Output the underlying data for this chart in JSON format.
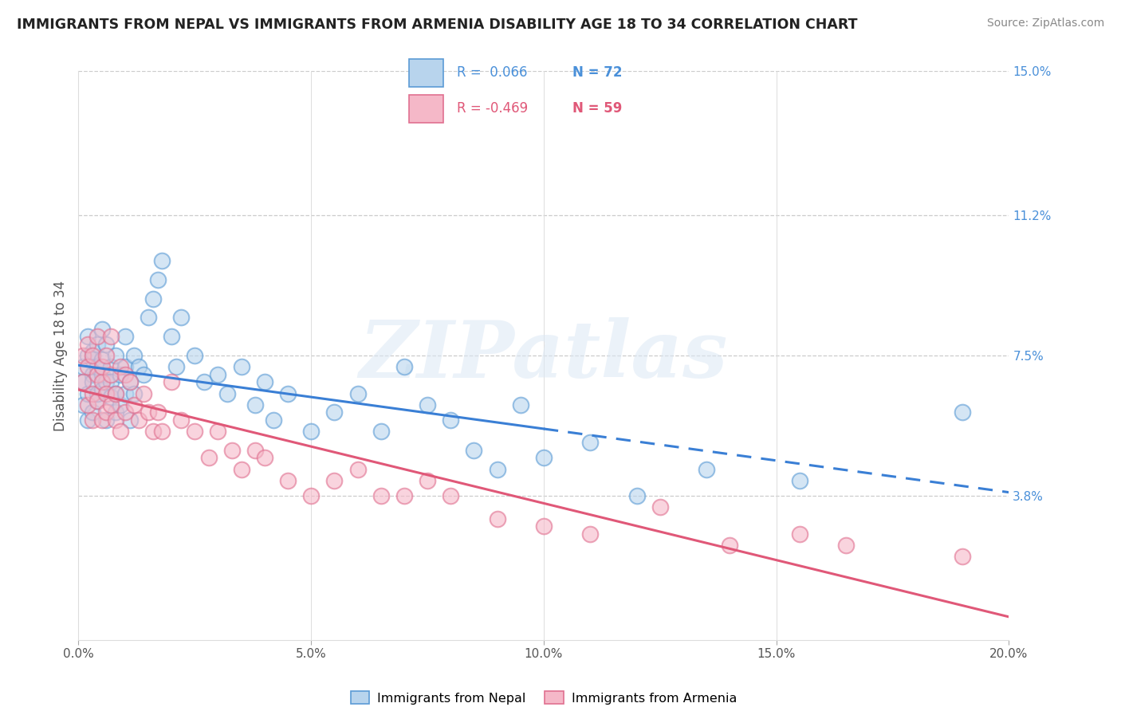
{
  "title": "IMMIGRANTS FROM NEPAL VS IMMIGRANTS FROM ARMENIA DISABILITY AGE 18 TO 34 CORRELATION CHART",
  "source": "Source: ZipAtlas.com",
  "ylabel": "Disability Age 18 to 34",
  "xlim": [
    0.0,
    0.2
  ],
  "ylim": [
    0.0,
    0.15
  ],
  "yticks": [
    0.038,
    0.075,
    0.112,
    0.15
  ],
  "ytick_labels": [
    "3.8%",
    "7.5%",
    "11.2%",
    "15.0%"
  ],
  "xticks": [
    0.0,
    0.05,
    0.1,
    0.15,
    0.2
  ],
  "xtick_labels": [
    "0.0%",
    "5.0%",
    "10.0%",
    "15.0%",
    "20.0%"
  ],
  "nepal_color": "#b8d4ed",
  "nepal_edge_color": "#5b9bd5",
  "armenia_color": "#f5b8c8",
  "armenia_edge_color": "#e07090",
  "nepal_line_color": "#3a7fd5",
  "armenia_line_color": "#e05878",
  "watermark_text": "ZIPatlas",
  "background_color": "#ffffff",
  "legend_R_nepal": "R =  0.066",
  "legend_N_nepal": "N = 72",
  "legend_R_armenia": "R = -0.469",
  "legend_N_armenia": "N = 59",
  "nepal_x": [
    0.001,
    0.001,
    0.001,
    0.002,
    0.002,
    0.002,
    0.002,
    0.003,
    0.003,
    0.003,
    0.003,
    0.003,
    0.004,
    0.004,
    0.004,
    0.004,
    0.005,
    0.005,
    0.005,
    0.005,
    0.006,
    0.006,
    0.006,
    0.007,
    0.007,
    0.007,
    0.008,
    0.008,
    0.008,
    0.009,
    0.009,
    0.01,
    0.01,
    0.01,
    0.011,
    0.011,
    0.012,
    0.012,
    0.013,
    0.014,
    0.015,
    0.016,
    0.017,
    0.018,
    0.02,
    0.021,
    0.022,
    0.025,
    0.027,
    0.03,
    0.032,
    0.035,
    0.038,
    0.04,
    0.042,
    0.045,
    0.05,
    0.055,
    0.06,
    0.065,
    0.07,
    0.075,
    0.08,
    0.085,
    0.09,
    0.095,
    0.1,
    0.11,
    0.12,
    0.135,
    0.155,
    0.19
  ],
  "nepal_y": [
    0.068,
    0.072,
    0.062,
    0.065,
    0.075,
    0.08,
    0.058,
    0.07,
    0.074,
    0.06,
    0.068,
    0.076,
    0.063,
    0.072,
    0.078,
    0.065,
    0.07,
    0.066,
    0.074,
    0.082,
    0.058,
    0.068,
    0.078,
    0.064,
    0.072,
    0.068,
    0.06,
    0.075,
    0.065,
    0.07,
    0.062,
    0.072,
    0.08,
    0.065,
    0.068,
    0.058,
    0.075,
    0.065,
    0.072,
    0.07,
    0.085,
    0.09,
    0.095,
    0.1,
    0.08,
    0.072,
    0.085,
    0.075,
    0.068,
    0.07,
    0.065,
    0.072,
    0.062,
    0.068,
    0.058,
    0.065,
    0.055,
    0.06,
    0.065,
    0.055,
    0.072,
    0.062,
    0.058,
    0.05,
    0.045,
    0.062,
    0.048,
    0.052,
    0.038,
    0.045,
    0.042,
    0.06
  ],
  "armenia_x": [
    0.001,
    0.001,
    0.002,
    0.002,
    0.002,
    0.003,
    0.003,
    0.003,
    0.004,
    0.004,
    0.004,
    0.005,
    0.005,
    0.005,
    0.006,
    0.006,
    0.006,
    0.007,
    0.007,
    0.007,
    0.008,
    0.008,
    0.009,
    0.009,
    0.01,
    0.01,
    0.011,
    0.012,
    0.013,
    0.014,
    0.015,
    0.016,
    0.017,
    0.018,
    0.02,
    0.022,
    0.025,
    0.028,
    0.03,
    0.033,
    0.035,
    0.038,
    0.04,
    0.045,
    0.05,
    0.055,
    0.06,
    0.065,
    0.07,
    0.075,
    0.08,
    0.09,
    0.1,
    0.11,
    0.125,
    0.14,
    0.155,
    0.165,
    0.19
  ],
  "armenia_y": [
    0.068,
    0.075,
    0.072,
    0.062,
    0.078,
    0.065,
    0.075,
    0.058,
    0.07,
    0.063,
    0.08,
    0.068,
    0.072,
    0.058,
    0.065,
    0.075,
    0.06,
    0.07,
    0.062,
    0.08,
    0.058,
    0.065,
    0.072,
    0.055,
    0.07,
    0.06,
    0.068,
    0.062,
    0.058,
    0.065,
    0.06,
    0.055,
    0.06,
    0.055,
    0.068,
    0.058,
    0.055,
    0.048,
    0.055,
    0.05,
    0.045,
    0.05,
    0.048,
    0.042,
    0.038,
    0.042,
    0.045,
    0.038,
    0.038,
    0.042,
    0.038,
    0.032,
    0.03,
    0.028,
    0.035,
    0.025,
    0.028,
    0.025,
    0.022
  ]
}
